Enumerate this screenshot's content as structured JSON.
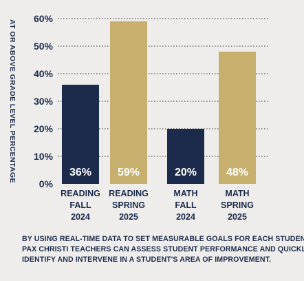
{
  "chart_data": {
    "type": "bar",
    "ylabel": "AT OR ABOVE GRADE LEVEL PERCENTAGE",
    "ylim": [
      0,
      60
    ],
    "yticks": [
      "0%",
      "10%",
      "20%",
      "30%",
      "40%",
      "50%",
      "60%"
    ],
    "grid": "horizontal dotted",
    "categories": [
      [
        "READING",
        "FALL",
        "2024"
      ],
      [
        "READING",
        "SPRING",
        "2025"
      ],
      [
        "MATH",
        "FALL",
        "2024"
      ],
      [
        "MATH",
        "SPRING",
        "2025"
      ]
    ],
    "values": [
      36,
      59,
      20,
      48
    ],
    "value_labels": [
      "36%",
      "59%",
      "20%",
      "48%"
    ],
    "bar_colors": [
      "#1c2b4b",
      "#c7af6d",
      "#1c2b4b",
      "#c7af6d"
    ]
  },
  "caption": [
    "BY USING REAL-TIME DATA TO SET MEASURABLE GOALS FOR EACH STUDENT,",
    "PAX CHRISTI TEACHERS CAN ASSESS STUDENT PERFORMANCE AND QUICKLY",
    "IDENTIFY AND INTERVENE IN A STUDENT'S AREA OF IMPROVEMENT."
  ],
  "colors": {
    "navy": "#1c2b4b",
    "gold": "#c7af6d",
    "background": "#eeedeb"
  }
}
